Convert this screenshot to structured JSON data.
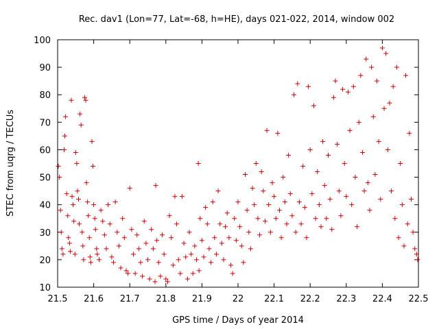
{
  "chart_data": {
    "type": "scatter",
    "title": "Rec. dav1 (Lon=77, Lat=-68, h=HE), days 021-022, 2014, window 002",
    "xlabel": "GPS time / Days of year 2014",
    "ylabel": "STEC from uqrg / TECUs",
    "xlim": [
      21.5,
      22.5
    ],
    "ylim": [
      10,
      100
    ],
    "xticks": [
      21.5,
      21.6,
      21.7,
      21.8,
      21.9,
      22.0,
      22.1,
      22.2,
      22.3,
      22.4,
      22.5
    ],
    "xtick_labels": [
      "21.5",
      "21.6",
      "21.7",
      "21.8",
      "21.9",
      "22",
      "22.1",
      "22.2",
      "22.3",
      "22.4",
      "22.5"
    ],
    "yticks": [
      10,
      20,
      30,
      40,
      50,
      60,
      70,
      80,
      90,
      100
    ],
    "ytick_labels": [
      "10",
      "20",
      "30",
      "40",
      "50",
      "60",
      "70",
      "80",
      "90",
      "100"
    ],
    "marker": "+",
    "color": "#cc0000",
    "grid": false,
    "series": [
      {
        "name": "STEC",
        "points": [
          [
            21.502,
            54
          ],
          [
            21.505,
            50
          ],
          [
            21.508,
            38
          ],
          [
            21.51,
            30
          ],
          [
            21.512,
            24
          ],
          [
            21.515,
            22
          ],
          [
            21.518,
            60
          ],
          [
            21.52,
            65
          ],
          [
            21.522,
            72
          ],
          [
            21.525,
            44
          ],
          [
            21.528,
            36
          ],
          [
            21.53,
            28
          ],
          [
            21.533,
            26
          ],
          [
            21.535,
            23
          ],
          [
            21.538,
            78
          ],
          [
            21.54,
            43
          ],
          [
            21.543,
            40
          ],
          [
            21.545,
            34
          ],
          [
            21.548,
            22
          ],
          [
            21.55,
            59
          ],
          [
            21.553,
            55
          ],
          [
            21.555,
            45
          ],
          [
            21.558,
            42
          ],
          [
            21.56,
            33
          ],
          [
            21.562,
            73
          ],
          [
            21.565,
            69
          ],
          [
            21.568,
            30
          ],
          [
            21.57,
            25
          ],
          [
            21.572,
            20
          ],
          [
            21.575,
            79
          ],
          [
            21.578,
            78
          ],
          [
            21.58,
            48
          ],
          [
            21.583,
            41
          ],
          [
            21.585,
            36
          ],
          [
            21.588,
            28
          ],
          [
            21.59,
            21
          ],
          [
            21.592,
            19
          ],
          [
            21.595,
            63
          ],
          [
            21.598,
            54
          ],
          [
            21.6,
            40
          ],
          [
            21.603,
            35
          ],
          [
            21.605,
            31
          ],
          [
            21.608,
            24
          ],
          [
            21.61,
            22
          ],
          [
            21.615,
            20
          ],
          [
            21.62,
            38
          ],
          [
            21.625,
            34
          ],
          [
            21.63,
            29
          ],
          [
            21.635,
            24
          ],
          [
            21.64,
            40
          ],
          [
            21.645,
            33
          ],
          [
            21.65,
            21
          ],
          [
            21.655,
            19
          ],
          [
            21.66,
            41
          ],
          [
            21.665,
            30
          ],
          [
            21.67,
            25
          ],
          [
            21.675,
            17
          ],
          [
            21.68,
            35
          ],
          [
            21.685,
            28
          ],
          [
            21.69,
            16
          ],
          [
            21.695,
            15
          ],
          [
            21.7,
            46
          ],
          [
            21.705,
            31
          ],
          [
            21.71,
            22
          ],
          [
            21.715,
            15
          ],
          [
            21.72,
            29
          ],
          [
            21.725,
            24
          ],
          [
            21.73,
            19
          ],
          [
            21.735,
            14
          ],
          [
            21.74,
            34
          ],
          [
            21.745,
            26
          ],
          [
            21.75,
            20
          ],
          [
            21.755,
            13
          ],
          [
            21.76,
            31
          ],
          [
            21.765,
            24
          ],
          [
            21.77,
            12
          ],
          [
            21.772,
            47
          ],
          [
            21.775,
            27
          ],
          [
            21.78,
            19
          ],
          [
            21.785,
            14
          ],
          [
            21.79,
            29
          ],
          [
            21.795,
            22
          ],
          [
            21.8,
            13
          ],
          [
            21.805,
            12
          ],
          [
            21.81,
            36
          ],
          [
            21.815,
            28
          ],
          [
            21.82,
            18
          ],
          [
            21.825,
            43
          ],
          [
            21.83,
            33
          ],
          [
            21.835,
            20
          ],
          [
            21.84,
            15
          ],
          [
            21.845,
            43
          ],
          [
            21.85,
            26
          ],
          [
            21.855,
            21
          ],
          [
            21.86,
            13
          ],
          [
            21.865,
            30
          ],
          [
            21.87,
            22
          ],
          [
            21.875,
            15
          ],
          [
            21.88,
            25
          ],
          [
            21.885,
            20
          ],
          [
            21.89,
            55
          ],
          [
            21.892,
            16
          ],
          [
            21.895,
            35
          ],
          [
            21.9,
            27
          ],
          [
            21.905,
            21
          ],
          [
            21.91,
            39
          ],
          [
            21.915,
            33
          ],
          [
            21.92,
            24
          ],
          [
            21.925,
            19
          ],
          [
            21.93,
            41
          ],
          [
            21.935,
            28
          ],
          [
            21.94,
            22
          ],
          [
            21.945,
            45
          ],
          [
            21.95,
            33
          ],
          [
            21.955,
            26
          ],
          [
            21.96,
            20
          ],
          [
            21.965,
            32
          ],
          [
            21.97,
            37
          ],
          [
            21.975,
            28
          ],
          [
            21.98,
            18
          ],
          [
            21.985,
            15
          ],
          [
            21.99,
            35
          ],
          [
            21.995,
            27
          ],
          [
            22.0,
            41
          ],
          [
            22.005,
            32
          ],
          [
            22.01,
            25
          ],
          [
            22.015,
            19
          ],
          [
            22.02,
            51
          ],
          [
            22.025,
            38
          ],
          [
            22.03,
            30
          ],
          [
            22.035,
            24
          ],
          [
            22.04,
            46
          ],
          [
            22.045,
            40
          ],
          [
            22.05,
            55
          ],
          [
            22.055,
            35
          ],
          [
            22.06,
            29
          ],
          [
            22.065,
            52
          ],
          [
            22.07,
            45
          ],
          [
            22.075,
            34
          ],
          [
            22.08,
            67
          ],
          [
            22.085,
            40
          ],
          [
            22.09,
            30
          ],
          [
            22.095,
            48
          ],
          [
            22.1,
            43
          ],
          [
            22.105,
            35
          ],
          [
            22.11,
            66
          ],
          [
            22.115,
            38
          ],
          [
            22.12,
            28
          ],
          [
            22.125,
            50
          ],
          [
            22.13,
            41
          ],
          [
            22.135,
            33
          ],
          [
            22.14,
            58
          ],
          [
            22.145,
            44
          ],
          [
            22.15,
            36
          ],
          [
            22.155,
            80
          ],
          [
            22.16,
            30
          ],
          [
            22.165,
            84
          ],
          [
            22.17,
            41
          ],
          [
            22.175,
            33
          ],
          [
            22.18,
            54
          ],
          [
            22.185,
            39
          ],
          [
            22.19,
            28
          ],
          [
            22.195,
            83
          ],
          [
            22.2,
            60
          ],
          [
            22.205,
            44
          ],
          [
            22.21,
            76
          ],
          [
            22.215,
            35
          ],
          [
            22.22,
            52
          ],
          [
            22.225,
            40
          ],
          [
            22.23,
            32
          ],
          [
            22.235,
            63
          ],
          [
            22.24,
            47
          ],
          [
            22.245,
            35
          ],
          [
            22.25,
            58
          ],
          [
            22.255,
            42
          ],
          [
            22.26,
            31
          ],
          [
            22.265,
            79
          ],
          [
            22.27,
            85
          ],
          [
            22.275,
            62
          ],
          [
            22.28,
            45
          ],
          [
            22.285,
            36
          ],
          [
            22.29,
            82
          ],
          [
            22.295,
            55
          ],
          [
            22.3,
            43
          ],
          [
            22.305,
            81
          ],
          [
            22.31,
            67
          ],
          [
            22.315,
            40
          ],
          [
            22.32,
            83
          ],
          [
            22.325,
            50
          ],
          [
            22.33,
            32
          ],
          [
            22.335,
            70
          ],
          [
            22.34,
            87
          ],
          [
            22.345,
            59
          ],
          [
            22.35,
            45
          ],
          [
            22.355,
            93
          ],
          [
            22.36,
            48
          ],
          [
            22.365,
            38
          ],
          [
            22.37,
            90
          ],
          [
            22.375,
            72
          ],
          [
            22.38,
            51
          ],
          [
            22.385,
            85
          ],
          [
            22.39,
            63
          ],
          [
            22.395,
            42
          ],
          [
            22.4,
            97
          ],
          [
            22.405,
            75
          ],
          [
            22.41,
            95
          ],
          [
            22.415,
            60
          ],
          [
            22.42,
            77
          ],
          [
            22.425,
            45
          ],
          [
            22.43,
            83
          ],
          [
            22.435,
            35
          ],
          [
            22.44,
            90
          ],
          [
            22.445,
            28
          ],
          [
            22.45,
            55
          ],
          [
            22.455,
            40
          ],
          [
            22.46,
            25
          ],
          [
            22.465,
            87
          ],
          [
            22.47,
            33
          ],
          [
            22.475,
            66
          ],
          [
            22.48,
            42
          ],
          [
            22.485,
            30
          ],
          [
            22.49,
            24
          ],
          [
            22.495,
            22
          ],
          [
            22.498,
            20
          ]
        ]
      }
    ]
  }
}
